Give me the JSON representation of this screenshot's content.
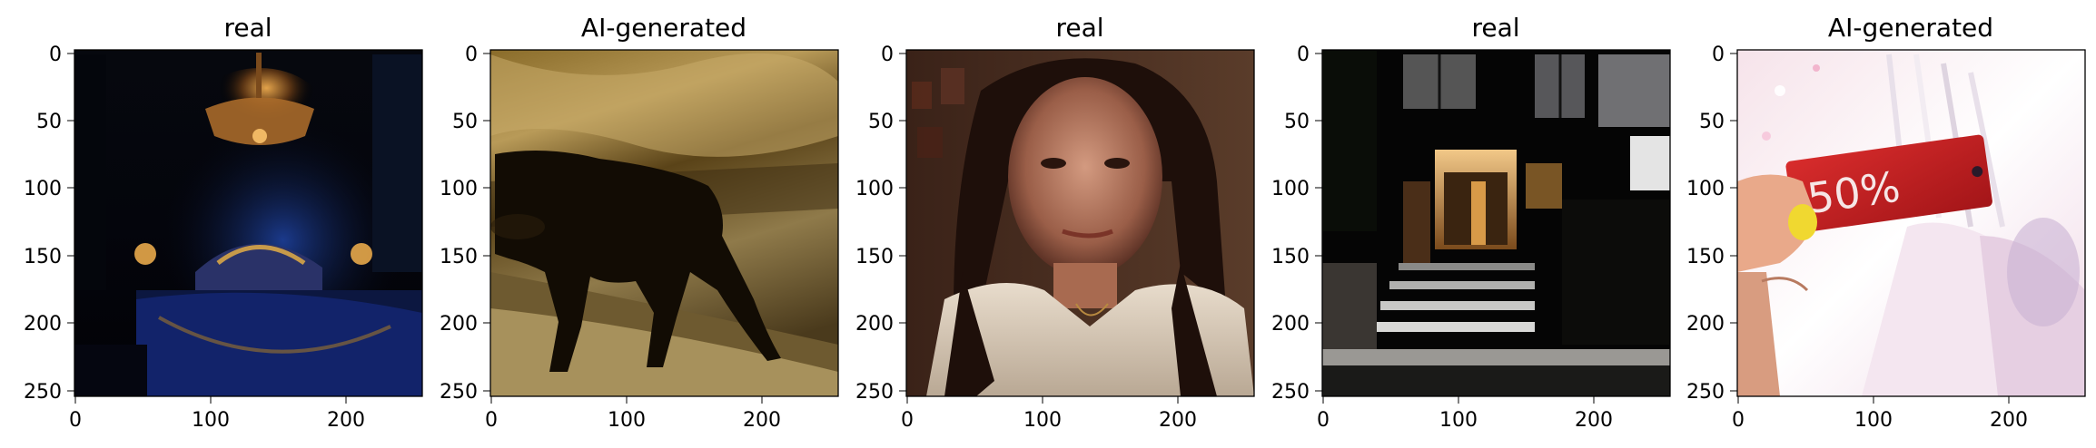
{
  "panels": [
    {
      "title": "real",
      "subject": "dark ornate bedroom with chandelier and blue bed",
      "xticks": [
        "0",
        "100",
        "200"
      ],
      "yticks": [
        "0",
        "50",
        "100",
        "150",
        "200",
        "250"
      ]
    },
    {
      "title": "AI-generated",
      "subject": "silhouette of large cat walking on dirt path",
      "xticks": [
        "0",
        "100",
        "200"
      ],
      "yticks": [
        "0",
        "50",
        "100",
        "150",
        "200",
        "250"
      ]
    },
    {
      "title": "real",
      "subject": "portrait of woman with long dark hair",
      "xticks": [
        "0",
        "100",
        "200"
      ],
      "yticks": [
        "0",
        "50",
        "100",
        "150",
        "200",
        "250"
      ]
    },
    {
      "title": "real",
      "subject": "modern house entrance at night with lit steps",
      "xticks": [
        "0",
        "100",
        "200"
      ],
      "yticks": [
        "0",
        "50",
        "100",
        "150",
        "200",
        "250"
      ]
    },
    {
      "title": "AI-generated",
      "subject": "hand holding red sale tag on clothing rack",
      "xticks": [
        "0",
        "100",
        "200"
      ],
      "yticks": [
        "0",
        "50",
        "100",
        "150",
        "200",
        "250"
      ],
      "tag_text": "50%"
    }
  ]
}
